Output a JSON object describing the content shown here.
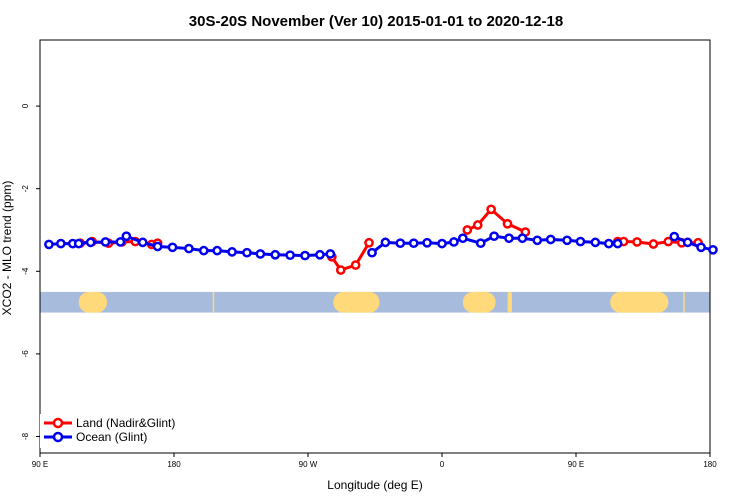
{
  "chart_data": {
    "type": "line",
    "title": "30S-20S November (Ver 10)   2015-01-01 to 2020-12-18",
    "xlabel": "Longitude (deg E)",
    "ylabel": "XCO2 - MLO trend (ppm)",
    "xlim": [
      90,
      540
    ],
    "ylim": [
      -8.4,
      1.6
    ],
    "x_ticks": [
      {
        "value": 90,
        "label": "90 E"
      },
      {
        "value": 180,
        "label": "180"
      },
      {
        "value": 270,
        "label": "90 W"
      },
      {
        "value": 360,
        "label": "0"
      },
      {
        "value": 450,
        "label": "90 E"
      },
      {
        "value": 540,
        "label": "180"
      }
    ],
    "y_ticks": [
      {
        "value": 0,
        "label": "0"
      },
      {
        "value": -2,
        "label": "-2"
      },
      {
        "value": -4,
        "label": "-4"
      },
      {
        "value": -6,
        "label": "-6"
      },
      {
        "value": -8,
        "label": "-8"
      }
    ],
    "grid": false,
    "legend_position": "bottom-left",
    "land_band": {
      "y_top": -4.5,
      "y_bottom": -5.0,
      "ocean_color": "#a7bbdc",
      "land_color": "#ffd97a",
      "land_segments": [
        [
          116,
          135
        ],
        [
          287,
          318
        ],
        [
          374,
          396
        ],
        [
          404,
          407
        ],
        [
          206,
          207
        ],
        [
          473,
          512
        ],
        [
          522,
          523
        ]
      ]
    },
    "series": [
      {
        "name": "Land (Nadir&Glint)",
        "color": "#ff0000",
        "segments": [
          [
            [
              117,
              -3.32
            ],
            [
              125,
              -3.28
            ],
            [
              136,
              -3.32
            ],
            [
              145,
              -3.29
            ],
            [
              154,
              -3.28
            ],
            [
              165,
              -3.35
            ],
            [
              169,
              -3.32
            ]
          ],
          [
            [
              286,
              -3.65
            ],
            [
              292,
              -3.97
            ],
            [
              302,
              -3.85
            ],
            [
              311,
              -3.31
            ]
          ],
          [
            [
              377,
              -3.0
            ],
            [
              384,
              -2.88
            ],
            [
              393,
              -2.5
            ],
            [
              404,
              -2.85
            ],
            [
              416,
              -3.05
            ]
          ],
          [
            [
              478,
              -3.28
            ],
            [
              482,
              -3.28
            ],
            [
              491,
              -3.29
            ],
            [
              502,
              -3.34
            ],
            [
              512,
              -3.28
            ],
            [
              521,
              -3.31
            ],
            [
              532,
              -3.31
            ]
          ]
        ]
      },
      {
        "name": "Ocean (Glint)",
        "color": "#0000ee",
        "segments": [
          [
            [
              96,
              -3.35
            ],
            [
              104,
              -3.33
            ],
            [
              112,
              -3.33
            ],
            [
              116,
              -3.33
            ],
            [
              124,
              -3.3
            ],
            [
              134,
              -3.29
            ],
            [
              144,
              -3.29
            ],
            [
              148,
              -3.15
            ],
            [
              159,
              -3.3
            ],
            [
              169,
              -3.4
            ],
            [
              179,
              -3.42
            ],
            [
              190,
              -3.45
            ],
            [
              200,
              -3.5
            ],
            [
              209,
              -3.5
            ],
            [
              219,
              -3.53
            ],
            [
              229,
              -3.55
            ],
            [
              238,
              -3.58
            ],
            [
              248,
              -3.6
            ],
            [
              258,
              -3.61
            ],
            [
              268,
              -3.62
            ],
            [
              278,
              -3.6
            ],
            [
              285,
              -3.58
            ]
          ],
          [
            [
              313,
              -3.55
            ],
            [
              322,
              -3.3
            ],
            [
              332,
              -3.32
            ],
            [
              341,
              -3.32
            ],
            [
              350,
              -3.31
            ],
            [
              360,
              -3.33
            ],
            [
              368,
              -3.29
            ],
            [
              374,
              -3.2
            ],
            [
              386,
              -3.32
            ],
            [
              395,
              -3.15
            ],
            [
              405,
              -3.2
            ],
            [
              414,
              -3.2
            ],
            [
              424,
              -3.25
            ],
            [
              433,
              -3.23
            ],
            [
              444,
              -3.25
            ],
            [
              453,
              -3.28
            ],
            [
              463,
              -3.3
            ],
            [
              472,
              -3.33
            ],
            [
              478,
              -3.33
            ]
          ],
          [
            [
              516,
              -3.16
            ],
            [
              525,
              -3.3
            ],
            [
              534,
              -3.42
            ],
            [
              542,
              -3.48
            ]
          ]
        ]
      }
    ]
  }
}
